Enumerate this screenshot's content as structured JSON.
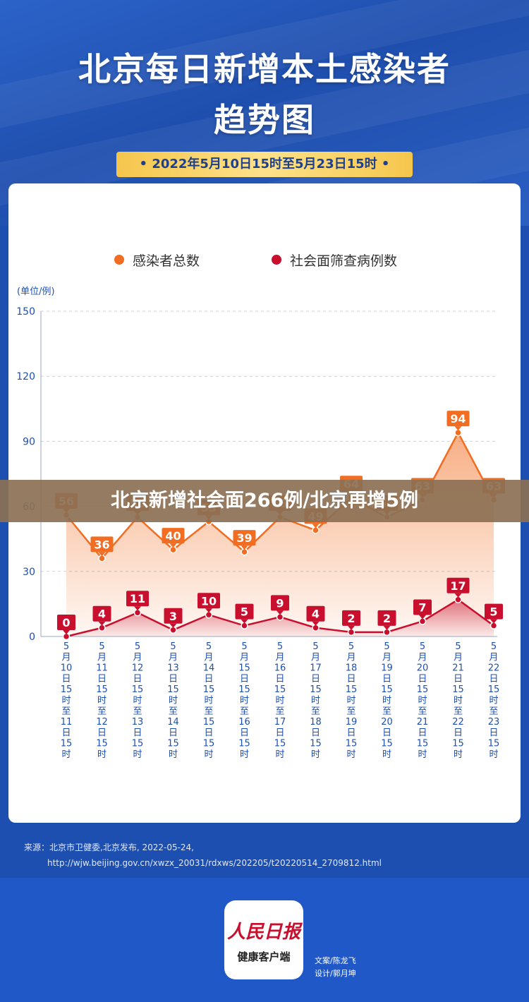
{
  "header": {
    "title_line1": "北京每日新增本土感染者",
    "title_line2": "趋势图",
    "date_range": "• 2022年5月10日15时至5月23日15时 •"
  },
  "unit_label": "(单位/例)",
  "banner_text": "北京新增社会面266例/北京再增5例",
  "source": {
    "line1": "来源：北京市卫健委,北京发布, 2022-05-24,",
    "line2": "http://wjw.beijing.gov.cn/xwzx_20031/rdxws/202205/t20220514_2709812.html"
  },
  "logo": {
    "brand": "人民日报",
    "sub": "健康客户端"
  },
  "credits": {
    "writer": "文案/陈龙飞",
    "designer": "设计/郭月坤"
  },
  "colors": {
    "orange": "#f26d21",
    "red": "#c8102e",
    "axis": "#1d4fb0",
    "bg": "#1d4fb0"
  },
  "chart_data": {
    "type": "line",
    "categories": [
      "5月10日15时至11日15时",
      "5月11日15时至12日15时",
      "5月12日15时至13日15时",
      "5月13日15时至14日15时",
      "5月14日15时至15日15时",
      "5月15日15时至16日15时",
      "5月16日15时至17日15时",
      "5月17日15时至18日15时",
      "5月18日15时至19日15时",
      "5月19日15时至20日15时",
      "5月20日15时至21日15时",
      "5月21日15时至22日15时",
      "5月22日15时至23日15时"
    ],
    "series": [
      {
        "name": "感染者总数",
        "values": [
          56,
          36,
          55,
          40,
          53,
          39,
          55,
          49,
          64,
          55,
          63,
          94,
          63
        ]
      },
      {
        "name": "社会面筛查病例数",
        "values": [
          0,
          4,
          11,
          3,
          10,
          5,
          9,
          4,
          2,
          2,
          7,
          17,
          5
        ]
      }
    ],
    "ylim": [
      0,
      150
    ],
    "yticks": [
      0,
      30,
      60,
      90,
      120,
      150
    ],
    "ylabel": "(单位/例)",
    "grid": true,
    "legend_position": "top"
  }
}
